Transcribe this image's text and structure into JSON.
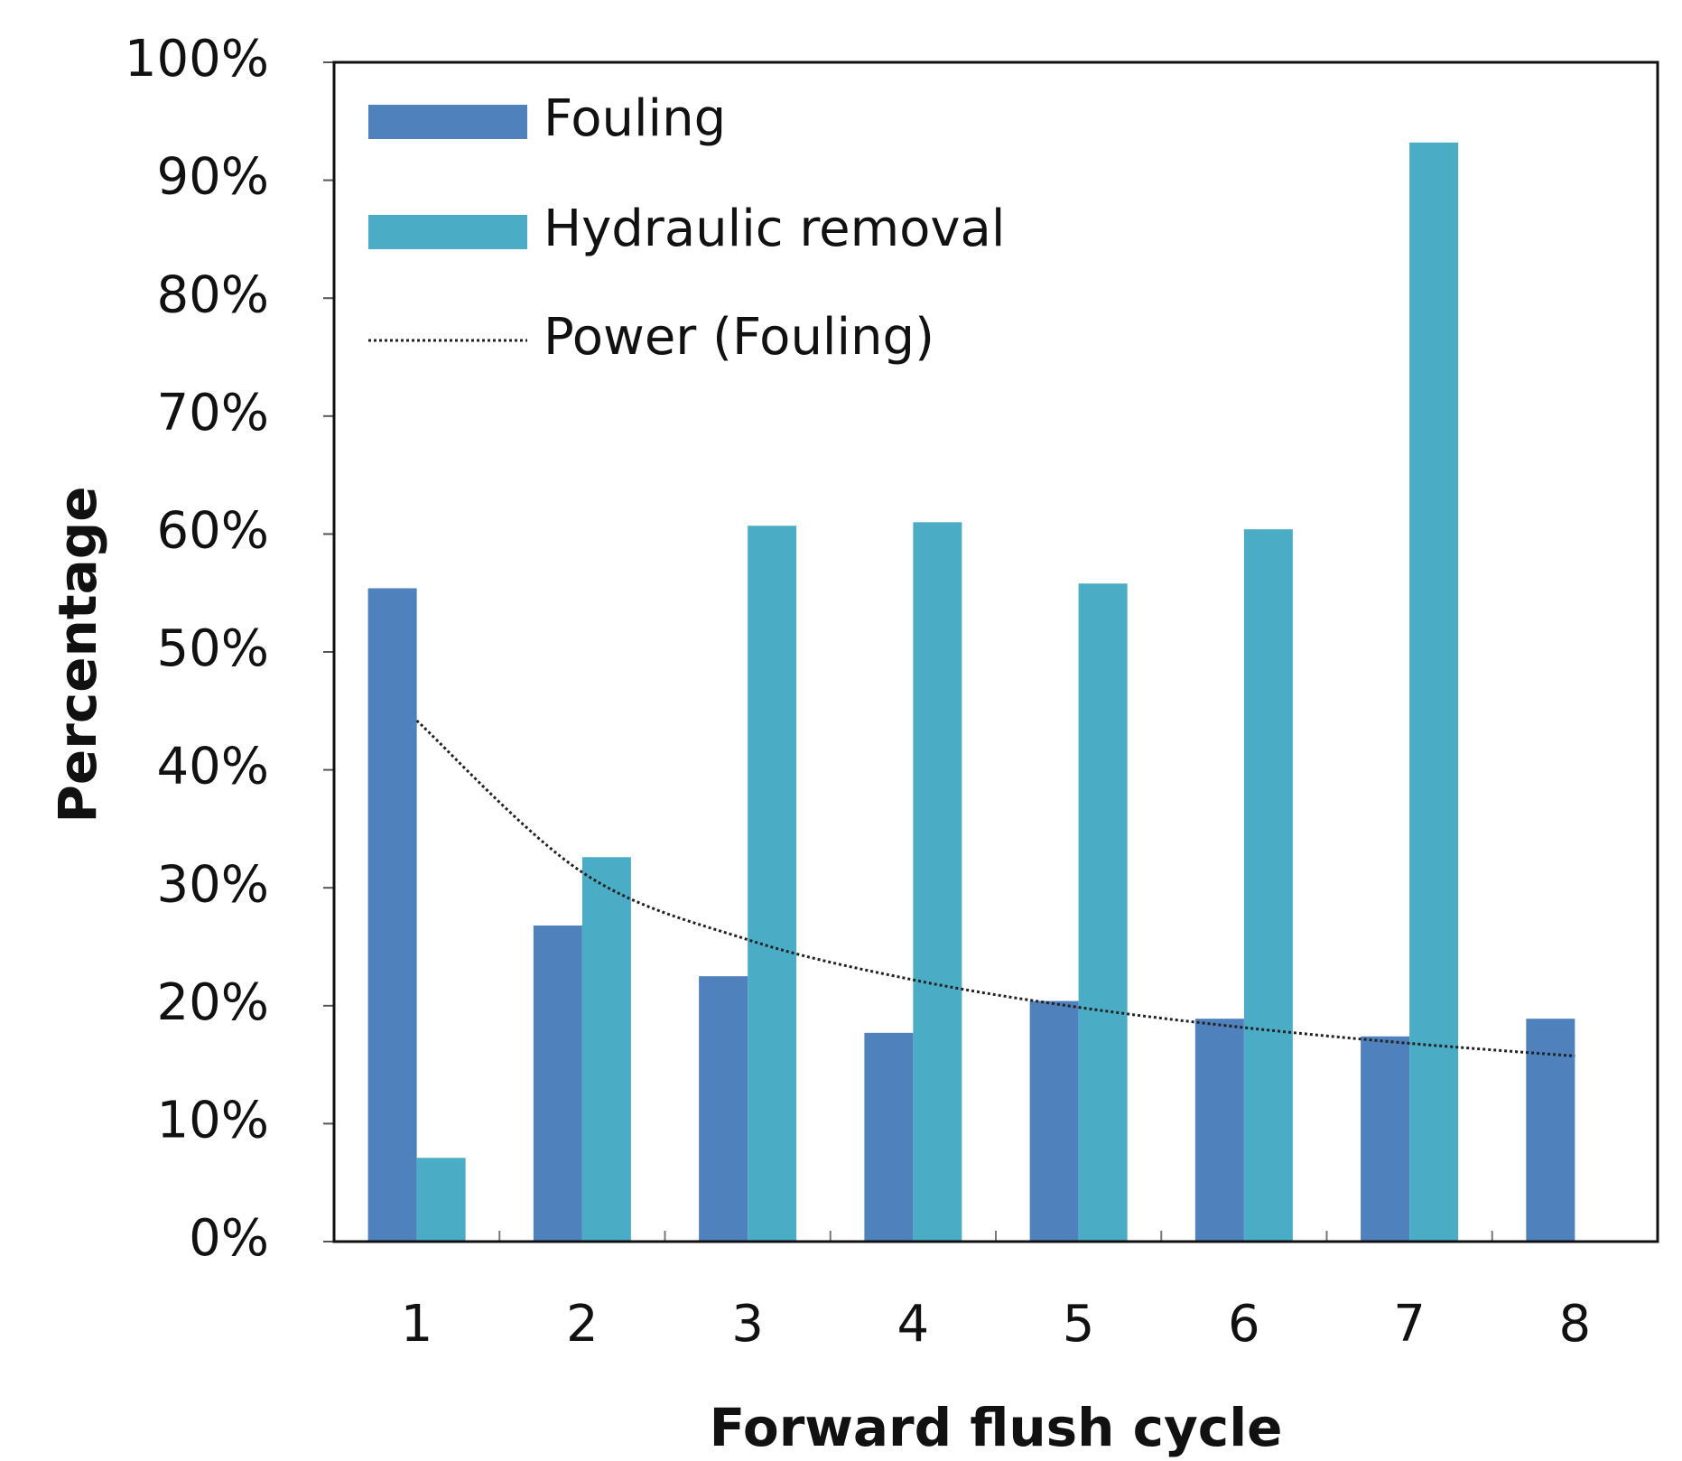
{
  "chart_data": {
    "type": "bar",
    "x_label": "Forward flush cycle",
    "y_label": "Percentage",
    "categories": [
      "1",
      "2",
      "3",
      "4",
      "5",
      "6",
      "7",
      "8"
    ],
    "series": [
      {
        "name": "Fouling",
        "color": "#4f81bd",
        "values": [
          55.4,
          26.8,
          22.5,
          17.7,
          20.4,
          18.9,
          17.4,
          18.9
        ]
      },
      {
        "name": "Hydraulic removal",
        "color": "#4bacc6",
        "values": [
          7.1,
          32.6,
          60.7,
          61.0,
          55.8,
          60.4,
          93.2,
          null
        ]
      }
    ],
    "trendline": {
      "name": "Power (Fouling)",
      "fit": "power",
      "series": 0,
      "color": "#222222"
    },
    "ylim": [
      0,
      100
    ],
    "yticks": [
      {
        "value": 0,
        "label": "0%"
      },
      {
        "value": 10,
        "label": "10%"
      },
      {
        "value": 20,
        "label": "20%"
      },
      {
        "value": 30,
        "label": "30%"
      },
      {
        "value": 40,
        "label": "40%"
      },
      {
        "value": 50,
        "label": "50%"
      },
      {
        "value": 60,
        "label": "60%"
      },
      {
        "value": 70,
        "label": "70%"
      },
      {
        "value": 80,
        "label": "80%"
      },
      {
        "value": 90,
        "label": "90%"
      },
      {
        "value": 100,
        "label": "100%"
      }
    ],
    "grid": false,
    "legend": "top-left"
  }
}
